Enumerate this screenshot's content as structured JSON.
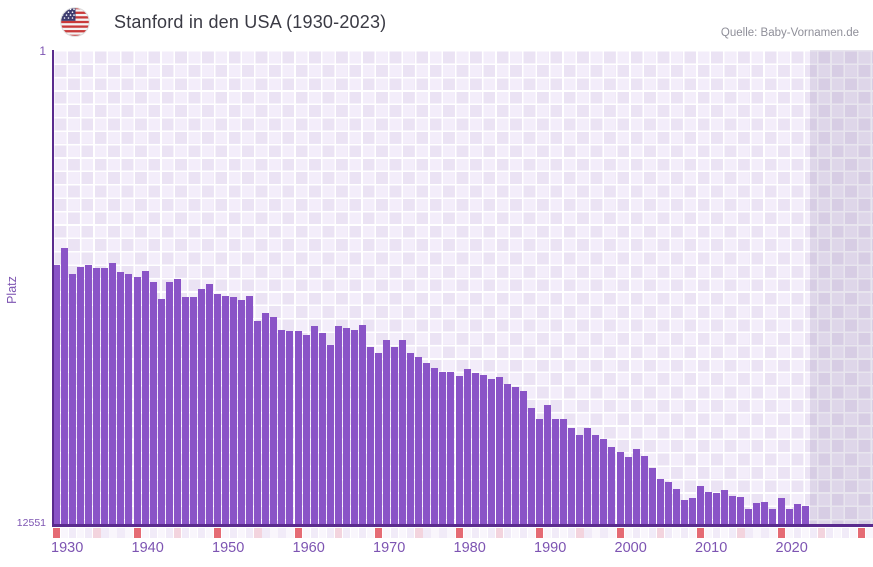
{
  "header": {
    "title": "Stanford in den USA (1930-2023)",
    "source": "Quelle: Baby-Vornamen.de"
  },
  "chart_data": {
    "type": "bar",
    "title": "Stanford in den USA (1930-2023)",
    "ylabel": "Platz",
    "y_axis": {
      "top_label": "1",
      "bottom_label": "12551",
      "min": 1,
      "max": 12551,
      "inverted": true
    },
    "x_tick_labels": [
      "1930",
      "1940",
      "1950",
      "1960",
      "1970",
      "1980",
      "1990",
      "2000",
      "2010",
      "2020"
    ],
    "x_range_years": [
      1930,
      2030
    ],
    "grid": true,
    "legend": false,
    "years": [
      1930,
      1931,
      1932,
      1933,
      1934,
      1935,
      1936,
      1937,
      1938,
      1939,
      1940,
      1941,
      1942,
      1943,
      1944,
      1945,
      1946,
      1947,
      1948,
      1949,
      1950,
      1951,
      1952,
      1953,
      1954,
      1955,
      1956,
      1957,
      1958,
      1959,
      1960,
      1961,
      1962,
      1963,
      1964,
      1965,
      1966,
      1967,
      1968,
      1969,
      1970,
      1971,
      1972,
      1973,
      1974,
      1975,
      1976,
      1977,
      1978,
      1979,
      1980,
      1981,
      1982,
      1983,
      1984,
      1985,
      1986,
      1987,
      1988,
      1989,
      1990,
      1991,
      1992,
      1993,
      1994,
      1995,
      1996,
      1997,
      1998,
      1999,
      2000,
      2001,
      2002,
      2003,
      2004,
      2005,
      2006,
      2007,
      2008,
      2009,
      2010,
      2011,
      2012,
      2013,
      2014,
      2015,
      2016,
      2017,
      2018,
      2019,
      2020,
      2021,
      2022,
      2023
    ],
    "values": [
      5680,
      5250,
      5940,
      5750,
      5680,
      5780,
      5760,
      5630,
      5890,
      5920,
      6000,
      5840,
      6130,
      6580,
      6130,
      6050,
      6550,
      6550,
      6340,
      6190,
      6450,
      6520,
      6550,
      6610,
      6520,
      7170,
      6950,
      7080,
      7400,
      7430,
      7430,
      7540,
      7300,
      7480,
      7810,
      7300,
      7360,
      7410,
      7280,
      7850,
      8020,
      7670,
      7850,
      7680,
      8020,
      8140,
      8290,
      8410,
      8520,
      8520,
      8640,
      8450,
      8550,
      8600,
      8710,
      8670,
      8850,
      8920,
      9040,
      9470,
      9770,
      9400,
      9770,
      9770,
      10000,
      10200,
      10000,
      10190,
      10310,
      10500,
      10640,
      10770,
      10570,
      10750,
      11080,
      11370,
      11430,
      11620,
      11920,
      11870,
      11540,
      11690,
      11740,
      11650,
      11810,
      11840,
      12150,
      11990,
      11960,
      12150,
      11850,
      12160,
      12030,
      12060
    ],
    "colors": {
      "bar": "#8a54c7",
      "axis_line": "#5a2b8e",
      "tick_label": "#7d54b2",
      "grid_cell_light": "#f3edfa",
      "grid_cell_dark": "#ebe3f4",
      "future_overlay": "rgba(115,95,150,0.16)"
    },
    "timeline_strip": {
      "decade_color": "#e56b74",
      "half_decade_color": "#f3d4de",
      "cell_color_a": "#f1ebf8",
      "cell_color_b": "#f9f6fc"
    }
  }
}
